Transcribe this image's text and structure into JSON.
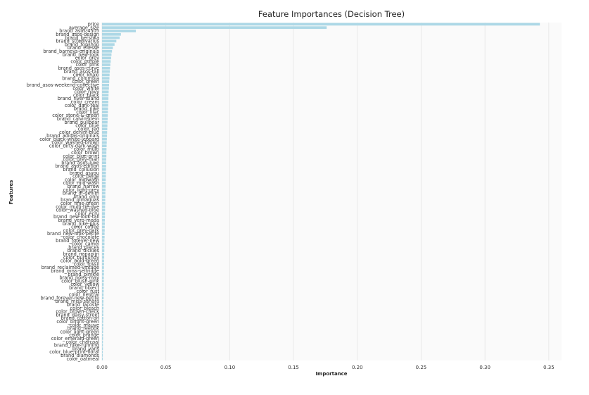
{
  "chart_data": {
    "type": "bar",
    "orientation": "horizontal",
    "title": "Feature Importances (Decision Tree)",
    "xlabel": "Importance",
    "ylabel": "Features",
    "xlim": [
      0,
      0.36
    ],
    "x_ticks": [
      "0.00",
      "0.05",
      "0.10",
      "0.15",
      "0.20",
      "0.25",
      "0.30",
      "0.35"
    ],
    "grid": true,
    "bar_color": "#add8e6",
    "background_color": "#fafafa",
    "categories": [
      "price",
      "average_size",
      "brand_asos-4505",
      "brand_asos-design",
      "brand_bershka",
      "brand_stradivarius",
      "brand_topshop",
      "brand_ellesse",
      "brand_barneys-originals",
      "brand_new-look",
      "color_grey",
      "color_purple",
      "color_pink",
      "brand_asos-curve",
      "brand_asos-tall",
      "color_khaki",
      "brand_columbia",
      "color_green",
      "brand_asos-weekend-collective",
      "color_white",
      "color_navy",
      "color_black",
      "brand_river-island",
      "color_cream",
      "color_dark-teal",
      "brand_nike",
      "color_lilac",
      "color_stone-&-green",
      "brand_calvin-klein",
      "brand_pullbear",
      "color_blue",
      "color_red",
      "color_denim-blue",
      "brand_adidas-originals",
      "color_black-white-leopard",
      "color_washed-brown",
      "color_dirty-dark-wash",
      "color_multi",
      "color_brown",
      "color_blue-print",
      "color_grey-marl",
      "brand_asos-luxe",
      "brand_asos-edition",
      "brand_collusion",
      "brand_asyou",
      "color_beige",
      "color_midwash",
      "color_mid-wash",
      "brand_harrow",
      "color_light-grey",
      "brand_dr-denim",
      "brand_only",
      "brand_gimaguas",
      "color_lime-green",
      "color_multi-tie-dye",
      "color_washed-blue",
      "color_ecru",
      "brand_new-look-tall",
      "brand_vero-moda",
      "brand_nike-plus",
      "color_coffee",
      "color_grey-dark",
      "brand_new-look-petite",
      "color_chocolate",
      "brand_forever-new",
      "color_camel",
      "brand_pieces",
      "brand_dickies",
      "brand_napapijri",
      "color_burgundy",
      "color_bold-green",
      "color_fossil",
      "brand_reclaimed-vintage",
      "brand_miss-selfridge",
      "brand_pimkie",
      "brand_noisy-may",
      "color_blush-pink",
      "color_yellow",
      "brand_object",
      "color_rust",
      "color_neutral",
      "brand_forever-new-petite",
      "brand_miss-sahara",
      "brand_lacoste",
      "color_bleach",
      "color_brown-check",
      "brand_daisy-street",
      "brand_cotton-on",
      "color_bright-green",
      "color_mauve",
      "brand_reebok",
      "color_light-green",
      "color_orange",
      "color_emerald-green",
      "color_charcoal",
      "brand_nike-running",
      "brand_vans",
      "color_blue-print-floral",
      "brand_diamonds",
      "color_oatmeal"
    ],
    "values": [
      0.343,
      0.176,
      0.0265,
      0.0148,
      0.0138,
      0.0112,
      0.0098,
      0.0085,
      0.0078,
      0.0074,
      0.0071,
      0.0068,
      0.0065,
      0.0063,
      0.0061,
      0.0059,
      0.0058,
      0.0056,
      0.0055,
      0.0054,
      0.0052,
      0.0051,
      0.005,
      0.0049,
      0.0048,
      0.0047,
      0.0046,
      0.0045,
      0.0044,
      0.0043,
      0.0042,
      0.0041,
      0.004,
      0.0039,
      0.0038,
      0.0037,
      0.0036,
      0.0035,
      0.0034,
      0.0034,
      0.0033,
      0.0032,
      0.0032,
      0.0031,
      0.003,
      0.003,
      0.0029,
      0.0028,
      0.0028,
      0.0027,
      0.0026,
      0.0026,
      0.0025,
      0.0025,
      0.0024,
      0.0024,
      0.0023,
      0.0023,
      0.0022,
      0.0022,
      0.0021,
      0.0021,
      0.002,
      0.002,
      0.0019,
      0.0019,
      0.0018,
      0.0018,
      0.0017,
      0.0017,
      0.0016,
      0.0016,
      0.0015,
      0.0015,
      0.0015,
      0.0014,
      0.0014,
      0.0013,
      0.0013,
      0.0013,
      0.0012,
      0.0012,
      0.0011,
      0.0011,
      0.0011,
      0.001,
      0.001,
      0.001,
      0.0009,
      0.0009,
      0.0009,
      0.0008,
      0.0008,
      0.0008,
      0.0007,
      0.0007,
      0.0007,
      0.0006,
      0.0006,
      0.0006
    ]
  }
}
